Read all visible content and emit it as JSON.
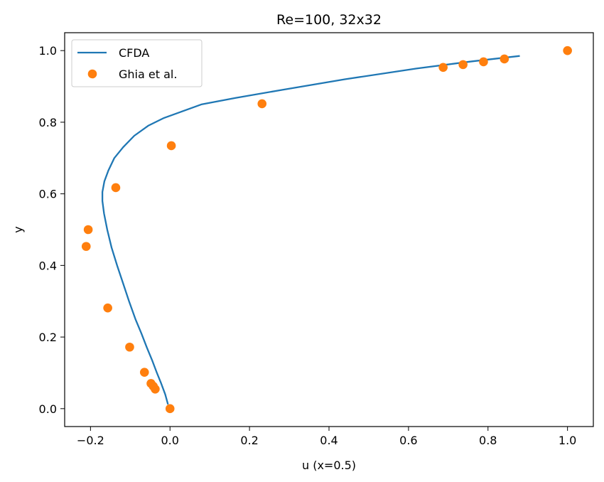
{
  "chart_data": {
    "type": "line",
    "title": "Re=100, 32x32",
    "xlabel": "u (x=0.5)",
    "ylabel": "y",
    "xlim": [
      -0.265,
      1.065
    ],
    "ylim": [
      -0.05,
      1.05
    ],
    "xticks": [
      -0.2,
      0.0,
      0.2,
      0.4,
      0.6,
      0.8,
      1.0
    ],
    "xtick_labels": [
      "−0.2",
      "0.0",
      "0.2",
      "0.4",
      "0.6",
      "0.8",
      "1.0"
    ],
    "yticks": [
      0.0,
      0.2,
      0.4,
      0.6,
      0.8,
      1.0
    ],
    "ytick_labels": [
      "0.0",
      "0.2",
      "0.4",
      "0.6",
      "0.8",
      "1.0"
    ],
    "grid": false,
    "legend": "top-left",
    "series": [
      {
        "name": "CFDA",
        "kind": "line",
        "color": "#1f77b4",
        "x": [
          -0.005,
          -0.012,
          -0.022,
          -0.033,
          -0.045,
          -0.058,
          -0.072,
          -0.087,
          -0.103,
          -0.118,
          -0.133,
          -0.147,
          -0.158,
          -0.166,
          -0.17,
          -0.17,
          -0.165,
          -0.155,
          -0.14,
          -0.118,
          -0.09,
          -0.055,
          -0.015,
          0.03,
          0.08,
          0.165,
          0.28,
          0.44,
          0.62,
          0.76,
          0.88
        ],
        "y": [
          0.012,
          0.04,
          0.07,
          0.1,
          0.135,
          0.17,
          0.21,
          0.25,
          0.3,
          0.35,
          0.4,
          0.45,
          0.5,
          0.545,
          0.58,
          0.605,
          0.635,
          0.665,
          0.7,
          0.73,
          0.762,
          0.79,
          0.812,
          0.83,
          0.85,
          0.868,
          0.89,
          0.92,
          0.95,
          0.97,
          0.985
        ]
      },
      {
        "name": "Ghia et al.",
        "kind": "scatter",
        "color": "#ff7f0e",
        "x": [
          0.0,
          -0.0372,
          -0.0419,
          -0.0478,
          -0.0643,
          -0.1015,
          -0.1566,
          -0.2109,
          -0.2058,
          -0.1364,
          0.0033,
          0.2315,
          0.6872,
          0.7372,
          0.7887,
          0.8412,
          1.0
        ],
        "y": [
          0.0,
          0.0547,
          0.0625,
          0.0703,
          0.1016,
          0.1719,
          0.2813,
          0.4531,
          0.5,
          0.6172,
          0.7344,
          0.8516,
          0.9531,
          0.9609,
          0.9688,
          0.9766,
          1.0
        ]
      }
    ]
  }
}
